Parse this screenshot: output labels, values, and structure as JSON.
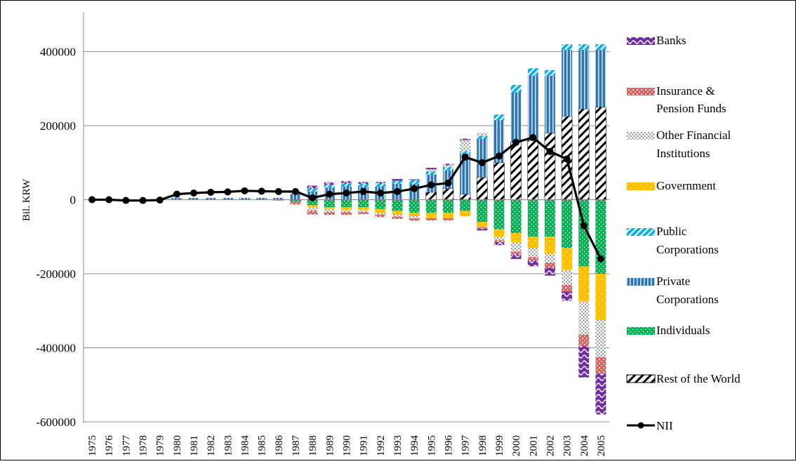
{
  "chart_data": {
    "type": "bar",
    "subtype": "stacked bar with line overlay",
    "title": "",
    "xlabel": "",
    "ylabel": "Bil. KRW",
    "ylim": [
      -600000,
      450000
    ],
    "yticks": [
      400000,
      200000,
      0,
      -200000,
      -400000,
      -600000
    ],
    "ytick_labels": [
      "400000",
      "200000",
      "0",
      "-200000",
      "-400000",
      "-600000"
    ],
    "grid": "horizontal",
    "legend_position": "right",
    "categories": [
      "1975",
      "1976",
      "1977",
      "1978",
      "1979",
      "1980",
      "1981",
      "1982",
      "1983",
      "1984",
      "1985",
      "1986",
      "1987",
      "1988",
      "1989",
      "1990",
      "1991",
      "1992",
      "1993",
      "1994",
      "1995",
      "1996",
      "1997",
      "1998",
      "1999",
      "2000",
      "2001",
      "2002",
      "2003",
      "2004",
      "2005"
    ],
    "series": [
      {
        "name": "Banks",
        "kind": "bar",
        "color": "#7030a0",
        "pattern": "wave",
        "values": [
          0,
          0,
          0,
          0,
          0,
          0,
          0,
          0,
          0,
          0,
          0,
          0,
          2000,
          8000,
          6000,
          6000,
          5000,
          5000,
          5000,
          2000,
          4000,
          4000,
          4000,
          -5000,
          -8000,
          -12000,
          -15000,
          -20000,
          -25000,
          -85000,
          -110000
        ]
      },
      {
        "name": "Insurance & Pension Funds",
        "kind": "bar",
        "color": "#e06060",
        "pattern": "brick",
        "values": [
          0,
          0,
          0,
          0,
          0,
          0,
          0,
          0,
          0,
          0,
          0,
          0,
          -8000,
          -10000,
          -8000,
          -8000,
          -6000,
          -7000,
          -7000,
          -7000,
          -6000,
          -6000,
          0,
          -3000,
          -5000,
          -8000,
          -10000,
          -15000,
          -18000,
          -30000,
          -45000
        ]
      },
      {
        "name": "Other Financial Institutions",
        "kind": "bar",
        "color": "#808080",
        "pattern": "dots",
        "values": [
          0,
          0,
          0,
          0,
          0,
          0,
          0,
          0,
          0,
          0,
          0,
          0,
          5000,
          -10000,
          -8000,
          -5000,
          -5000,
          -5000,
          -5000,
          -5000,
          6000,
          5000,
          30000,
          8000,
          -10000,
          -25000,
          -25000,
          -25000,
          -40000,
          -90000,
          -100000
        ]
      },
      {
        "name": "Government",
        "kind": "bar",
        "color": "#ffc000",
        "pattern": "sparse-dots",
        "values": [
          0,
          0,
          0,
          0,
          0,
          0,
          0,
          0,
          0,
          0,
          0,
          0,
          0,
          -5000,
          -5000,
          -8000,
          -8000,
          -10000,
          -10000,
          -10000,
          -15000,
          -15000,
          -15000,
          -15000,
          -20000,
          -25000,
          -30000,
          -45000,
          -60000,
          -95000,
          -125000
        ]
      },
      {
        "name": "Public Corporations",
        "kind": "bar",
        "color": "#00b0f0",
        "pattern": "diagonal",
        "values": [
          0,
          0,
          0,
          0,
          0,
          0,
          0,
          0,
          0,
          0,
          0,
          0,
          0,
          8000,
          8000,
          8000,
          8000,
          8000,
          8000,
          10000,
          8000,
          8000,
          6000,
          8000,
          15000,
          20000,
          20000,
          15000,
          15000,
          15000,
          15000
        ]
      },
      {
        "name": "Private Corporations",
        "kind": "bar",
        "color": "#2e75b6",
        "pattern": "vertical",
        "values": [
          0,
          0,
          0,
          0,
          0,
          5000,
          5000,
          5000,
          5000,
          5000,
          5000,
          5000,
          15000,
          22000,
          33000,
          36000,
          35000,
          35000,
          43000,
          43000,
          48000,
          50000,
          110000,
          105000,
          115000,
          135000,
          175000,
          155000,
          180000,
          160000,
          155000
        ]
      },
      {
        "name": "Individuals",
        "kind": "bar",
        "color": "#00b050",
        "pattern": "dots",
        "values": [
          0,
          0,
          0,
          0,
          0,
          0,
          0,
          0,
          0,
          0,
          0,
          -2000,
          -5000,
          -15000,
          -20000,
          -20000,
          -20000,
          -25000,
          -30000,
          -35000,
          -35000,
          -35000,
          -30000,
          -60000,
          -80000,
          -90000,
          -100000,
          -100000,
          -130000,
          -180000,
          -200000
        ]
      },
      {
        "name": "Rest of the World",
        "kind": "bar",
        "color": "#000000",
        "pattern": "hatch",
        "values": [
          0,
          0,
          0,
          0,
          0,
          0,
          0,
          0,
          0,
          0,
          0,
          0,
          0,
          0,
          0,
          0,
          0,
          0,
          0,
          0,
          20000,
          30000,
          15000,
          60000,
          100000,
          155000,
          160000,
          180000,
          225000,
          245000,
          250000
        ]
      },
      {
        "name": "NII",
        "kind": "line",
        "color": "#000000",
        "values": [
          0,
          0,
          -2000,
          -2000,
          -1000,
          15000,
          18000,
          20000,
          21000,
          24000,
          23000,
          22000,
          22000,
          5000,
          15000,
          18000,
          22000,
          18000,
          22000,
          30000,
          40000,
          45000,
          115000,
          100000,
          118000,
          155000,
          168000,
          130000,
          110000,
          -70000,
          -160000
        ]
      }
    ]
  },
  "legend": {
    "banks": "Banks",
    "insurance_1": "Insurance &",
    "insurance_2": "Pension Funds",
    "other_fin_1": "Other Financial",
    "other_fin_2": "Institutions",
    "government": "Government",
    "public_corp_1": "Public",
    "public_corp_2": "Corporations",
    "private_corp_1": "Private",
    "private_corp_2": "Corporations",
    "individuals": "Individuals",
    "rest_of_world": "Rest of the World",
    "nii": "NII"
  }
}
